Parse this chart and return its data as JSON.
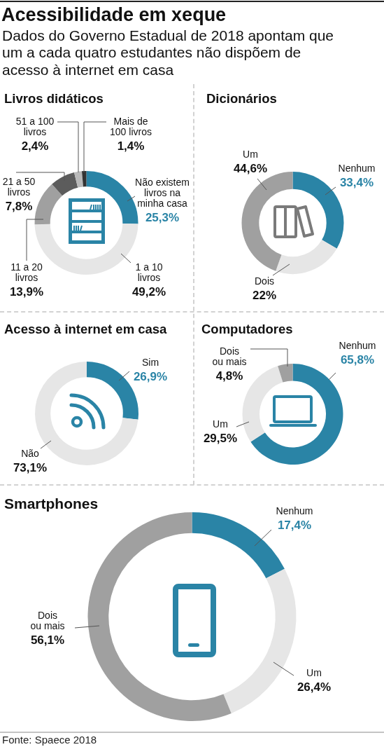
{
  "chart_data": [
    {
      "type": "other",
      "title": "Acessibilidade em xeque",
      "subtitle": "Dados do Governo Estadual de 2018 apontam que um a cada quatro estudantes não dispõem de acesso à internet em casa"
    },
    {
      "type": "donut",
      "title": "Livros didáticos",
      "categories": [
        "Não existem livros na minha casa",
        "1 a 10 livros",
        "11 a 20 livros",
        "21 a 50 livros",
        "51 a 100 livros",
        "Mais de 100 livros"
      ],
      "values": [
        25.3,
        49.2,
        13.9,
        7.8,
        2.4,
        1.4
      ],
      "value_labels": [
        "25,3%",
        "49,2%",
        "13,9%",
        "7,8%",
        "2,4%",
        "1,4%"
      ],
      "colors": [
        "#2a84a6",
        "#e6e6e6",
        "#a0a0a0",
        "#5c5c5c",
        "#b9b9b9",
        "#333333"
      ]
    },
    {
      "type": "donut",
      "title": "Dicionários",
      "categories": [
        "Nenhum",
        "Dois",
        "Um"
      ],
      "values": [
        33.4,
        22,
        44.6
      ],
      "value_labels": [
        "33,4%",
        "22%",
        "44,6%"
      ],
      "colors": [
        "#2a84a6",
        "#e6e6e6",
        "#a0a0a0"
      ]
    },
    {
      "type": "donut",
      "title": "Acesso à internet em casa",
      "categories": [
        "Sim",
        "Não"
      ],
      "values": [
        26.9,
        73.1
      ],
      "value_labels": [
        "26,9%",
        "73,1%"
      ],
      "colors": [
        "#2a84a6",
        "#e6e6e6"
      ]
    },
    {
      "type": "donut",
      "title": "Computadores",
      "categories": [
        "Nenhum",
        "Um",
        "Dois ou mais"
      ],
      "values": [
        65.8,
        29.5,
        4.8
      ],
      "value_labels": [
        "65,8%",
        "29,5%",
        "4,8%"
      ],
      "colors": [
        "#2a84a6",
        "#e6e6e6",
        "#a0a0a0"
      ]
    },
    {
      "type": "donut",
      "title": "Smartphones",
      "categories": [
        "Nenhum",
        "Um",
        "Dois ou mais"
      ],
      "values": [
        17.4,
        26.4,
        56.1
      ],
      "value_labels": [
        "17,4%",
        "26,4%",
        "56,1%"
      ],
      "colors": [
        "#2a84a6",
        "#e6e6e6",
        "#a0a0a0"
      ],
      "annotations": [
        "Fonte: Spaece 2018"
      ]
    }
  ]
}
